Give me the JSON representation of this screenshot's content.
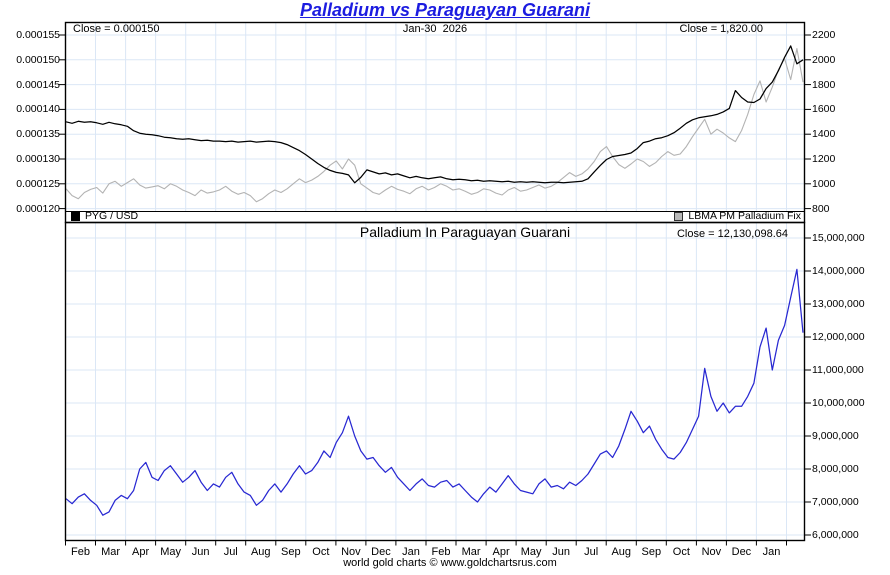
{
  "title": "Palladium vs Paraguayan Guarani",
  "footer": "world gold charts © www.goldchartsrus.com",
  "colors": {
    "title_blue": "#1c1ce0",
    "grid_blue": "#dbe7f6",
    "axis_text": "#000000",
    "panel_border": "#000000"
  },
  "chart_data": [
    {
      "type": "line",
      "panel": "top",
      "annotations": {
        "close_left": "Close = 0.000150",
        "date": "Jan-30  2026",
        "close_right": "Close = 1,820.00"
      },
      "x_month_labels": [
        "Feb",
        "Mar",
        "Apr",
        "May",
        "Jun",
        "Jul",
        "Aug",
        "Sep",
        "Oct",
        "Nov",
        "Dec",
        "Jan",
        "Feb",
        "Mar",
        "Apr",
        "May",
        "Jun",
        "Jul",
        "Aug",
        "Sep",
        "Oct",
        "Nov",
        "Dec",
        "Jan"
      ],
      "left_axis": {
        "tick_labels": [
          "0.000155",
          "0.000150",
          "0.000145",
          "0.000140",
          "0.000135",
          "0.000130",
          "0.000125",
          "0.000120"
        ],
        "max": 0.000155,
        "min": 0.00012,
        "tick_step": 5e-06
      },
      "right_axis": {
        "tick_labels": [
          "2200",
          "2000",
          "1800",
          "1600",
          "1400",
          "1200",
          "1000",
          "800"
        ],
        "max": 2200,
        "min": 800,
        "tick_step": 200
      },
      "legend_position": "bottom-strip",
      "grid": true,
      "series": [
        {
          "name": "PYG / USD",
          "axis": "left",
          "color": "#000000",
          "values": [
            0.0001375,
            0.0001372,
            0.0001376,
            0.0001374,
            0.0001375,
            0.0001373,
            0.000137,
            0.0001374,
            0.0001371,
            0.0001369,
            0.0001366,
            0.0001357,
            0.0001352,
            0.000135,
            0.0001349,
            0.0001347,
            0.0001344,
            0.0001343,
            0.0001341,
            0.000134,
            0.0001341,
            0.0001339,
            0.0001337,
            0.0001338,
            0.0001336,
            0.0001336,
            0.0001335,
            0.0001336,
            0.0001334,
            0.0001335,
            0.0001336,
            0.0001334,
            0.0001335,
            0.0001336,
            0.0001335,
            0.0001333,
            0.0001329,
            0.0001323,
            0.0001317,
            0.0001309,
            0.00013,
            0.0001291,
            0.0001283,
            0.0001277,
            0.0001273,
            0.0001271,
            0.0001268,
            0.0001252,
            0.0001263,
            0.0001278,
            0.0001274,
            0.000127,
            0.0001272,
            0.0001268,
            0.000127,
            0.0001266,
            0.0001262,
            0.0001265,
            0.0001262,
            0.000126,
            0.0001262,
            0.0001264,
            0.000126,
            0.0001258,
            0.0001259,
            0.0001258,
            0.0001256,
            0.0001257,
            0.0001255,
            0.0001256,
            0.0001255,
            0.0001254,
            0.0001255,
            0.0001253,
            0.0001254,
            0.0001253,
            0.0001254,
            0.0001253,
            0.0001252,
            0.0001253,
            0.0001253,
            0.0001252,
            0.0001253,
            0.0001254,
            0.0001255,
            0.000126,
            0.0001274,
            0.0001287,
            0.0001299,
            0.0001305,
            0.0001307,
            0.0001309,
            0.0001312,
            0.0001321,
            0.0001333,
            0.0001336,
            0.0001341,
            0.0001343,
            0.0001347,
            0.0001353,
            0.0001362,
            0.0001372,
            0.0001379,
            0.0001383,
            0.0001385,
            0.0001387,
            0.000139,
            0.0001395,
            0.0001402,
            0.0001438,
            0.0001424,
            0.0001415,
            0.0001414,
            0.0001421,
            0.0001442,
            0.0001455,
            0.0001478,
            0.0001505,
            0.0001528,
            0.0001492,
            0.00015
          ]
        },
        {
          "name": "LBMA PM Palladium Fix",
          "axis": "right",
          "color": "#b3b3b3",
          "values": [
            960,
            905,
            880,
            930,
            955,
            970,
            925,
            1000,
            1020,
            980,
            1010,
            1040,
            990,
            965,
            975,
            985,
            960,
            1000,
            980,
            950,
            930,
            905,
            950,
            925,
            935,
            950,
            980,
            940,
            915,
            930,
            905,
            855,
            880,
            920,
            950,
            930,
            960,
            1000,
            1040,
            1010,
            1030,
            1060,
            1100,
            1150,
            1185,
            1120,
            1200,
            1150,
            1000,
            965,
            930,
            915,
            950,
            980,
            955,
            940,
            920,
            960,
            980,
            950,
            970,
            1000,
            980,
            950,
            960,
            940,
            915,
            930,
            960,
            950,
            925,
            910,
            950,
            970,
            940,
            950,
            970,
            990,
            965,
            980,
            1010,
            1050,
            1090,
            1060,
            1080,
            1120,
            1180,
            1260,
            1300,
            1220,
            1155,
            1125,
            1160,
            1200,
            1180,
            1140,
            1170,
            1220,
            1260,
            1230,
            1240,
            1300,
            1380,
            1450,
            1520,
            1400,
            1440,
            1410,
            1370,
            1340,
            1430,
            1560,
            1720,
            1830,
            1660,
            1780,
            1920,
            2010,
            1840,
            2090,
            1820
          ]
        }
      ]
    },
    {
      "type": "line",
      "panel": "bottom",
      "title": "Palladium In Paraguayan Guarani",
      "annotations": {
        "close": "Close = 12,130,098.64"
      },
      "right_axis": {
        "tick_labels": [
          "15,000,000",
          "14,000,000",
          "13,000,000",
          "12,000,000",
          "11,000,000",
          "10,000,000",
          "9,000,000",
          "8,000,000",
          "7,000,000",
          "6,000,000"
        ],
        "max": 15000000,
        "min": 6000000,
        "tick_step": 1000000
      },
      "grid": true,
      "series": [
        {
          "name": "Palladium In Paraguayan Guarani",
          "axis": "right",
          "color": "#2828d2",
          "values": [
            7100000,
            6950000,
            7150000,
            7250000,
            7050000,
            6900000,
            6600000,
            6700000,
            7050000,
            7200000,
            7100000,
            7350000,
            8000000,
            8200000,
            7750000,
            7650000,
            7950000,
            8100000,
            7850000,
            7600000,
            7750000,
            7950000,
            7600000,
            7350000,
            7550000,
            7450000,
            7750000,
            7900000,
            7550000,
            7300000,
            7200000,
            6900000,
            7050000,
            7350000,
            7550000,
            7300000,
            7550000,
            7850000,
            8100000,
            7850000,
            7950000,
            8200000,
            8550000,
            8350000,
            8800000,
            9100000,
            9600000,
            9000000,
            8550000,
            8300000,
            8350000,
            8100000,
            7900000,
            8050000,
            7750000,
            7550000,
            7350000,
            7550000,
            7700000,
            7500000,
            7450000,
            7600000,
            7650000,
            7450000,
            7550000,
            7350000,
            7150000,
            7000000,
            7250000,
            7450000,
            7300000,
            7550000,
            7800000,
            7550000,
            7350000,
            7300000,
            7250000,
            7550000,
            7700000,
            7450000,
            7500000,
            7400000,
            7600000,
            7500000,
            7650000,
            7850000,
            8150000,
            8450000,
            8550000,
            8350000,
            8700000,
            9200000,
            9750000,
            9450000,
            9100000,
            9300000,
            8900000,
            8600000,
            8350000,
            8300000,
            8500000,
            8800000,
            9200000,
            9600000,
            11050000,
            10200000,
            9750000,
            10000000,
            9700000,
            9900000,
            9900000,
            10200000,
            10600000,
            11700000,
            12270000,
            11000000,
            11900000,
            12350000,
            13200000,
            14050000,
            12130099
          ]
        }
      ]
    }
  ]
}
